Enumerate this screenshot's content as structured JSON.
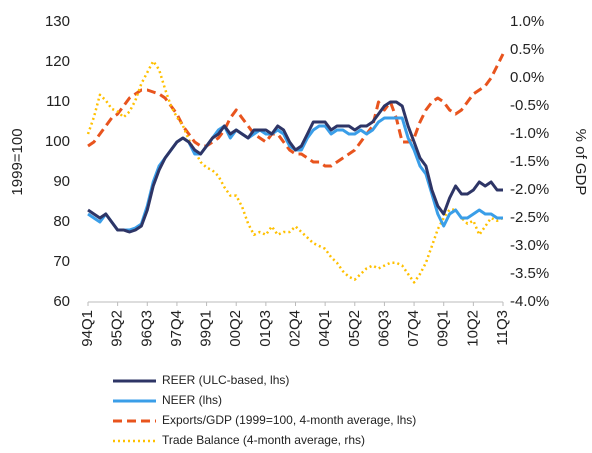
{
  "chart_data": {
    "type": "line",
    "categories": [
      "94Q1",
      null,
      null,
      null,
      null,
      "95Q2",
      null,
      null,
      null,
      null,
      "96Q3",
      null,
      null,
      null,
      null,
      "97Q4",
      null,
      null,
      null,
      null,
      "99Q1",
      null,
      null,
      null,
      null,
      "00Q2",
      null,
      null,
      null,
      null,
      "01Q3",
      null,
      null,
      null,
      null,
      "02Q4",
      null,
      null,
      null,
      null,
      "04Q1",
      null,
      null,
      null,
      null,
      "05Q2",
      null,
      null,
      null,
      null,
      "06Q3",
      null,
      null,
      null,
      null,
      "07Q4",
      null,
      null,
      null,
      null,
      "09Q1",
      null,
      null,
      null,
      null,
      "10Q2",
      null,
      null,
      null,
      null,
      "11Q3"
    ],
    "ylabel": "1999=100",
    "y2label": "% of GDP",
    "ylim": [
      60,
      130
    ],
    "yticks": [
      60,
      70,
      80,
      90,
      100,
      110,
      120,
      130
    ],
    "y2lim": [
      -4,
      1
    ],
    "y2ticks": [
      {
        "value": -4,
        "label": "-4.0%"
      },
      {
        "value": -3.5,
        "label": "-3.5%"
      },
      {
        "value": -3,
        "label": "-3.0%"
      },
      {
        "value": -2.5,
        "label": "-2.5%"
      },
      {
        "value": -2,
        "label": "-2.0%"
      },
      {
        "value": -1.5,
        "label": "-1.5%"
      },
      {
        "value": -1,
        "label": "-1.0%"
      },
      {
        "value": -0.5,
        "label": "-0.5%"
      },
      {
        "value": 0,
        "label": "0.0%"
      },
      {
        "value": 0.5,
        "label": "0.5%"
      },
      {
        "value": 1,
        "label": "1.0%"
      }
    ],
    "series": [
      {
        "name": "REER (ULC-based, lhs)",
        "color": "#2e3566",
        "style": "solid",
        "values": [
          83,
          82,
          81,
          82,
          80,
          78,
          78,
          77.5,
          78,
          79,
          83,
          89,
          93,
          96,
          98,
          100,
          101,
          100,
          98,
          97,
          99,
          101,
          102,
          104,
          102,
          103,
          102,
          101,
          103,
          103,
          103,
          102,
          104,
          103,
          100,
          98,
          99,
          102,
          105,
          105,
          105,
          103,
          104,
          104,
          104,
          103,
          104,
          104,
          105,
          107,
          109,
          110,
          110,
          109,
          104,
          100,
          96,
          94,
          88,
          84,
          82,
          86,
          89,
          87,
          87,
          88,
          90,
          89,
          90,
          88,
          88
        ]
      },
      {
        "name": "NEER (lhs)",
        "color": "#3a9ee8",
        "style": "solid",
        "values": [
          82,
          81,
          80,
          82,
          80,
          78,
          78,
          78,
          78.5,
          79.5,
          84,
          90,
          94,
          96,
          98,
          100,
          101,
          100,
          97,
          97,
          99,
          101,
          103,
          104,
          101,
          103,
          102,
          101,
          102,
          103,
          102,
          102,
          103,
          102,
          99,
          98,
          98,
          101,
          103,
          104,
          104,
          102,
          103,
          103,
          102,
          102,
          103,
          102,
          103,
          105,
          106,
          106,
          106,
          106,
          101,
          98,
          94,
          92,
          87,
          82,
          79,
          82,
          83,
          81,
          81,
          82,
          83,
          82,
          82,
          81,
          81
        ]
      },
      {
        "name": "Exports/GDP (1999=100, 4-month average, lhs)",
        "color": "#e8541e",
        "style": "dashed",
        "values": [
          99,
          100,
          102,
          104,
          106,
          107,
          109,
          111,
          112,
          113,
          113,
          112.5,
          112,
          111,
          109,
          107,
          104,
          102,
          100,
          99,
          99,
          100,
          101,
          103,
          106,
          108,
          106,
          104,
          102,
          101,
          100,
          102,
          102,
          100,
          98,
          97,
          97,
          96,
          95,
          95,
          94,
          94,
          95,
          96,
          97,
          98,
          100,
          102,
          104,
          110,
          108,
          110,
          106,
          100,
          100,
          101,
          105,
          108,
          110,
          111,
          110,
          108,
          107,
          108,
          110,
          112,
          113,
          114,
          116,
          119,
          122
        ]
      },
      {
        "name": "Trade Balance (4-month average, rhs)",
        "color": "#ffc000",
        "style": "dotted",
        "axis": "y2",
        "values": [
          -1.0,
          -0.7,
          -0.3,
          -0.4,
          -0.55,
          -0.6,
          -0.7,
          -0.6,
          -0.4,
          -0.1,
          0.1,
          0.3,
          0.15,
          -0.2,
          -0.5,
          -0.7,
          -0.85,
          -1.1,
          -1.3,
          -1.5,
          -1.6,
          -1.65,
          -1.75,
          -1.95,
          -2.1,
          -2.1,
          -2.3,
          -2.6,
          -2.8,
          -2.75,
          -2.8,
          -2.65,
          -2.8,
          -2.75,
          -2.75,
          -2.65,
          -2.75,
          -2.85,
          -2.95,
          -3.0,
          -3.05,
          -3.2,
          -3.3,
          -3.45,
          -3.55,
          -3.6,
          -3.5,
          -3.4,
          -3.35,
          -3.4,
          -3.35,
          -3.3,
          -3.3,
          -3.35,
          -3.5,
          -3.65,
          -3.5,
          -3.3,
          -3.0,
          -2.7,
          -2.5,
          -2.35,
          -2.35,
          -2.5,
          -2.6,
          -2.55,
          -2.8,
          -2.65,
          -2.5,
          -2.55,
          -2.5
        ]
      }
    ]
  }
}
